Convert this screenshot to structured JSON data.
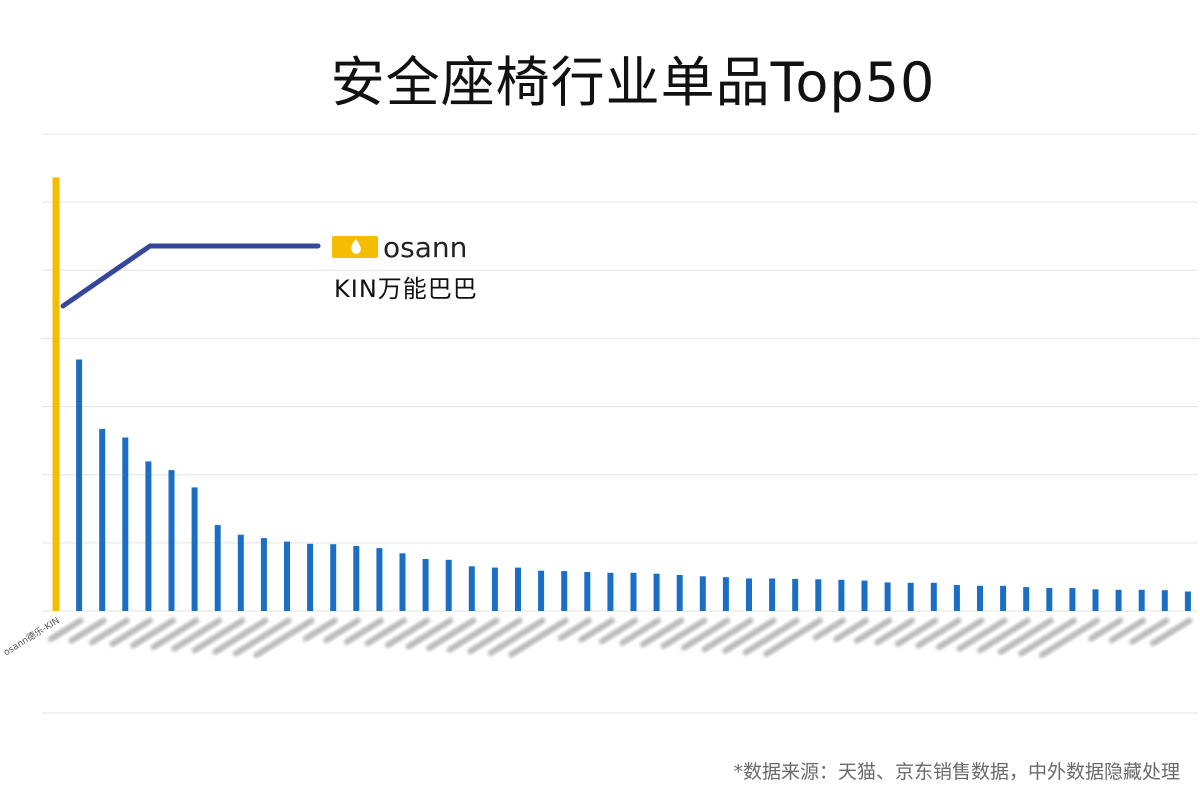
{
  "chart_data": {
    "type": "bar",
    "title": "安全座椅行业单品Top50",
    "first_category": "osann德乐-KIN",
    "values": [
      100,
      58,
      42,
      40,
      34.5,
      32.5,
      28.5,
      19.8,
      17.6,
      16.8,
      16.0,
      15.5,
      15.4,
      15.0,
      14.5,
      13.3,
      12.0,
      11.8,
      10.3,
      10.0,
      10.0,
      9.3,
      9.2,
      9.0,
      8.8,
      8.8,
      8.6,
      8.3,
      8.0,
      7.8,
      7.5,
      7.5,
      7.4,
      7.3,
      7.2,
      7.0,
      6.6,
      6.5,
      6.5,
      6.0,
      5.8,
      5.8,
      5.5,
      5.3,
      5.3,
      5.0,
      4.9,
      4.9,
      4.8,
      4.5
    ],
    "highlight_index": 0,
    "ylim": [
      0,
      110
    ],
    "grid": true,
    "colors": {
      "highlight_bar": "#F5BD02",
      "bar": "#1A6FC4",
      "callout_line": "#34479A",
      "gridline": "#E3E3E3"
    },
    "annotation": {
      "brand_logo_text": "osann",
      "label": "KIN万能巴巴"
    }
  },
  "footer": {
    "source_note": "*数据来源：天猫、京东销售数据，中外数据隐藏处理"
  }
}
